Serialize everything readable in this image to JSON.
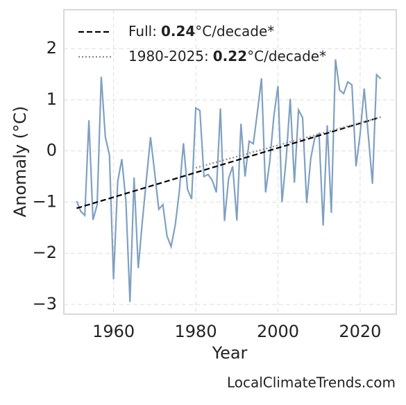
{
  "chart_data": {
    "type": "line",
    "xlabel": "Year",
    "ylabel": "Anomaly (°C)",
    "source": "LocalClimateTrends.com",
    "xlim": [
      1947.9,
      2028.8
    ],
    "xticks": [
      1960,
      1980,
      2000,
      2020
    ],
    "ylim": [
      -3.19,
      2.76
    ],
    "yticks": [
      {
        "value": -3,
        "label": "−3"
      },
      {
        "value": -2,
        "label": "−2"
      },
      {
        "value": -1,
        "label": "−1"
      },
      0,
      1,
      2
    ],
    "grid": true,
    "legend": "upper left",
    "series": [
      {
        "color": "#7fa0c2",
        "style": "solid",
        "x": [
          1951,
          1952,
          1953,
          1954,
          1955,
          1956,
          1957,
          1958,
          1959,
          1960,
          1961,
          1962,
          1963,
          1964,
          1965,
          1966,
          1967,
          1968,
          1969,
          1970,
          1971,
          1972,
          1973,
          1974,
          1975,
          1976,
          1977,
          1978,
          1979,
          1980,
          1981,
          1982,
          1983,
          1984,
          1985,
          1986,
          1987,
          1988,
          1989,
          1990,
          1991,
          1992,
          1993,
          1994,
          1995,
          1996,
          1997,
          1998,
          1999,
          2000,
          2001,
          2002,
          2003,
          2004,
          2005,
          2006,
          2007,
          2008,
          2009,
          2010,
          2011,
          2012,
          2013,
          2014,
          2015,
          2016,
          2017,
          2018,
          2019,
          2020,
          2021,
          2022,
          2023,
          2024,
          2025
        ],
        "values": [
          -0.98,
          -1.18,
          -1.26,
          0.6,
          -1.35,
          -1.05,
          1.45,
          0.27,
          -0.08,
          -2.51,
          -0.6,
          -0.16,
          -0.98,
          -2.95,
          -0.52,
          -2.29,
          -1.38,
          -0.55,
          0.27,
          -0.43,
          -1.14,
          -1.05,
          -1.66,
          -1.87,
          -1.45,
          -0.79,
          0.15,
          -0.75,
          -0.94,
          0.84,
          0.79,
          -0.5,
          -0.46,
          -0.57,
          -0.81,
          0.83,
          -1.37,
          -0.54,
          -0.3,
          -1.36,
          0.53,
          -0.5,
          0.19,
          0.14,
          0.76,
          1.42,
          -0.81,
          -0.22,
          0.68,
          1.27,
          -1.0,
          -0.16,
          1.02,
          -0.62,
          0.8,
          0.65,
          -1.02,
          -0.14,
          0.27,
          0.34,
          -1.46,
          0.5,
          -1.21,
          1.79,
          1.19,
          1.12,
          1.35,
          1.29,
          -0.3,
          0.33,
          1.22,
          0.3,
          -0.64,
          1.49,
          1.41
        ]
      },
      {
        "color": "#000000",
        "style": "dashed",
        "label": "Full:",
        "slope": 0.24,
        "unit": "°C/decade*",
        "x": [
          1951,
          2025
        ],
        "values": [
          -1.12,
          0.66
        ]
      },
      {
        "color": "#888888",
        "style": "dotted",
        "label": "1980-2025:",
        "slope": 0.22,
        "unit": "°C/decade*",
        "x": [
          1980,
          2025
        ],
        "values": [
          -0.33,
          0.66
        ]
      }
    ]
  }
}
